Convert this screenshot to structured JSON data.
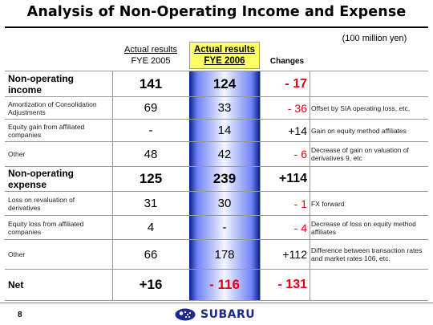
{
  "title": "Analysis of Non-Operating Income and Expense",
  "unit": "(100 million yen)",
  "headers": {
    "fy2005_line1": "Actual results",
    "fy2005_line2": "FYE 2005",
    "fy2006_line1": "Actual results",
    "fy2006_line2": "FYE 2006",
    "changes": "Changes"
  },
  "rows": [
    {
      "label": "Non-operating income",
      "fy2005": "141",
      "fy2006": "124",
      "change": "- 17",
      "note": ""
    },
    {
      "label": "Amortization of Consolidation Adjustments",
      "fy2005": "69",
      "fy2006": "33",
      "change": "- 36",
      "note": "Offset by SIA operating loss, etc."
    },
    {
      "label": "Equity gain from affiliated companies",
      "fy2005": "-",
      "fy2006": "14",
      "change": "+14",
      "note": "Gain on equity method affiliates"
    },
    {
      "label": "Other",
      "fy2005": "48",
      "fy2006": "42",
      "change": "- 6",
      "note": "Decrease of gain on valuation of derivatives 9, etc"
    },
    {
      "label": "Non-operating expense",
      "fy2005": "125",
      "fy2006": "239",
      "change": "+114",
      "note": ""
    },
    {
      "label": "Loss on revaluation of derivatives",
      "fy2005": "31",
      "fy2006": "30",
      "change": "- 1",
      "note": "FX forward"
    },
    {
      "label": "Equity loss from affiliated companies",
      "fy2005": "4",
      "fy2006": "-",
      "change": "- 4",
      "note": "Decrease of loss on equity method affiliates"
    },
    {
      "label": "Other",
      "fy2005": "66",
      "fy2006": "178",
      "change": "+112",
      "note": "Difference between transaction rates and market rates 106, etc."
    },
    {
      "label": "Net",
      "fy2005": "+16",
      "fy2006": "- 116",
      "change": "- 131",
      "note": ""
    }
  ],
  "footer": {
    "page_number": "8",
    "brand": "SUBARU"
  },
  "colors": {
    "negative": "#e60012",
    "header_highlight": "#ffff66",
    "column_gradient_dark": "#0a1f8f",
    "brand_blue": "#1b2a8c"
  }
}
